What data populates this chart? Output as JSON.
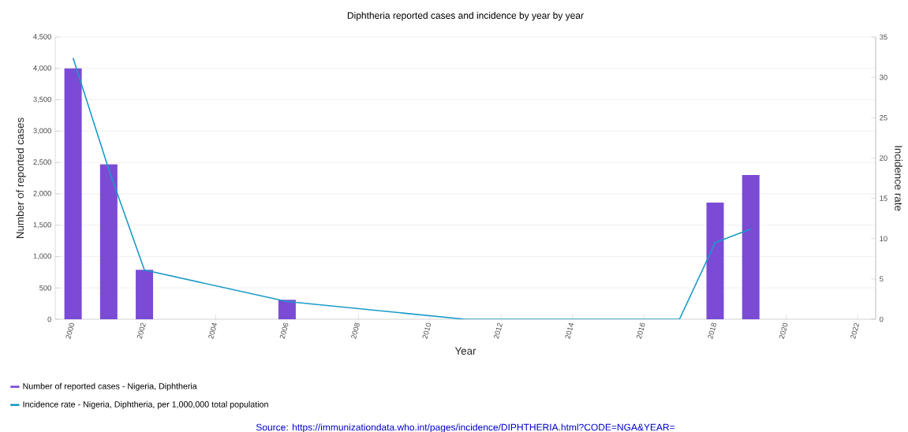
{
  "chart_data": {
    "type": "bar",
    "title": "Diphtheria reported cases and incidence by year by year",
    "xlabel": "Year",
    "ylabel": "Number of reported cases",
    "y2label": "Incidence rate",
    "series": [
      {
        "name": "Number of reported cases - Nigeria, Diphtheria",
        "color": "#7b4bd6",
        "x": [
          2000,
          2001,
          2002,
          2006,
          2018,
          2019
        ],
        "values": [
          4000,
          2470,
          790,
          310,
          1860,
          2300
        ]
      },
      {
        "name": "Incidence rate - Nigeria, Diphtheria, per 1,000,000 total population",
        "type": "line",
        "axis": "y2",
        "color": "#1a9bc7",
        "x": [
          2000,
          2001,
          2002,
          2006,
          2011,
          2012,
          2013,
          2014,
          2015,
          2016,
          2017,
          2018,
          2019
        ],
        "values": [
          32.4,
          18.6,
          6.1,
          2.2,
          0,
          0,
          0,
          0,
          0,
          0,
          0,
          9.5,
          11.2
        ]
      }
    ],
    "xlim": [
      1999.5,
      2022.5
    ],
    "xticks": [
      2000,
      2002,
      2004,
      2006,
      2008,
      2010,
      2012,
      2014,
      2016,
      2018,
      2020,
      2022
    ],
    "ylim": [
      0,
      4500
    ],
    "yticks": [
      0,
      500,
      {
        "value": 1000,
        "label": "1,000"
      },
      {
        "value": 1500,
        "label": "1,500"
      },
      {
        "value": 2000,
        "label": "2,000"
      },
      {
        "value": 2500,
        "label": "2,500"
      },
      {
        "value": 3000,
        "label": "3,000"
      },
      {
        "value": 3500,
        "label": "3,500"
      },
      {
        "value": 4000,
        "label": "4,000"
      },
      {
        "value": 4500,
        "label": "4,500"
      }
    ],
    "y2lim": [
      0,
      35
    ],
    "y2ticks": [
      0,
      5,
      10,
      15,
      20,
      25,
      30,
      35
    ],
    "grid": "y",
    "legend": "bottom left",
    "annotations": [
      "Source: https://immunizationdata.who.int/pages/incidence/DIPHTHERIA.html?CODE=NGA&YEAR="
    ]
  }
}
